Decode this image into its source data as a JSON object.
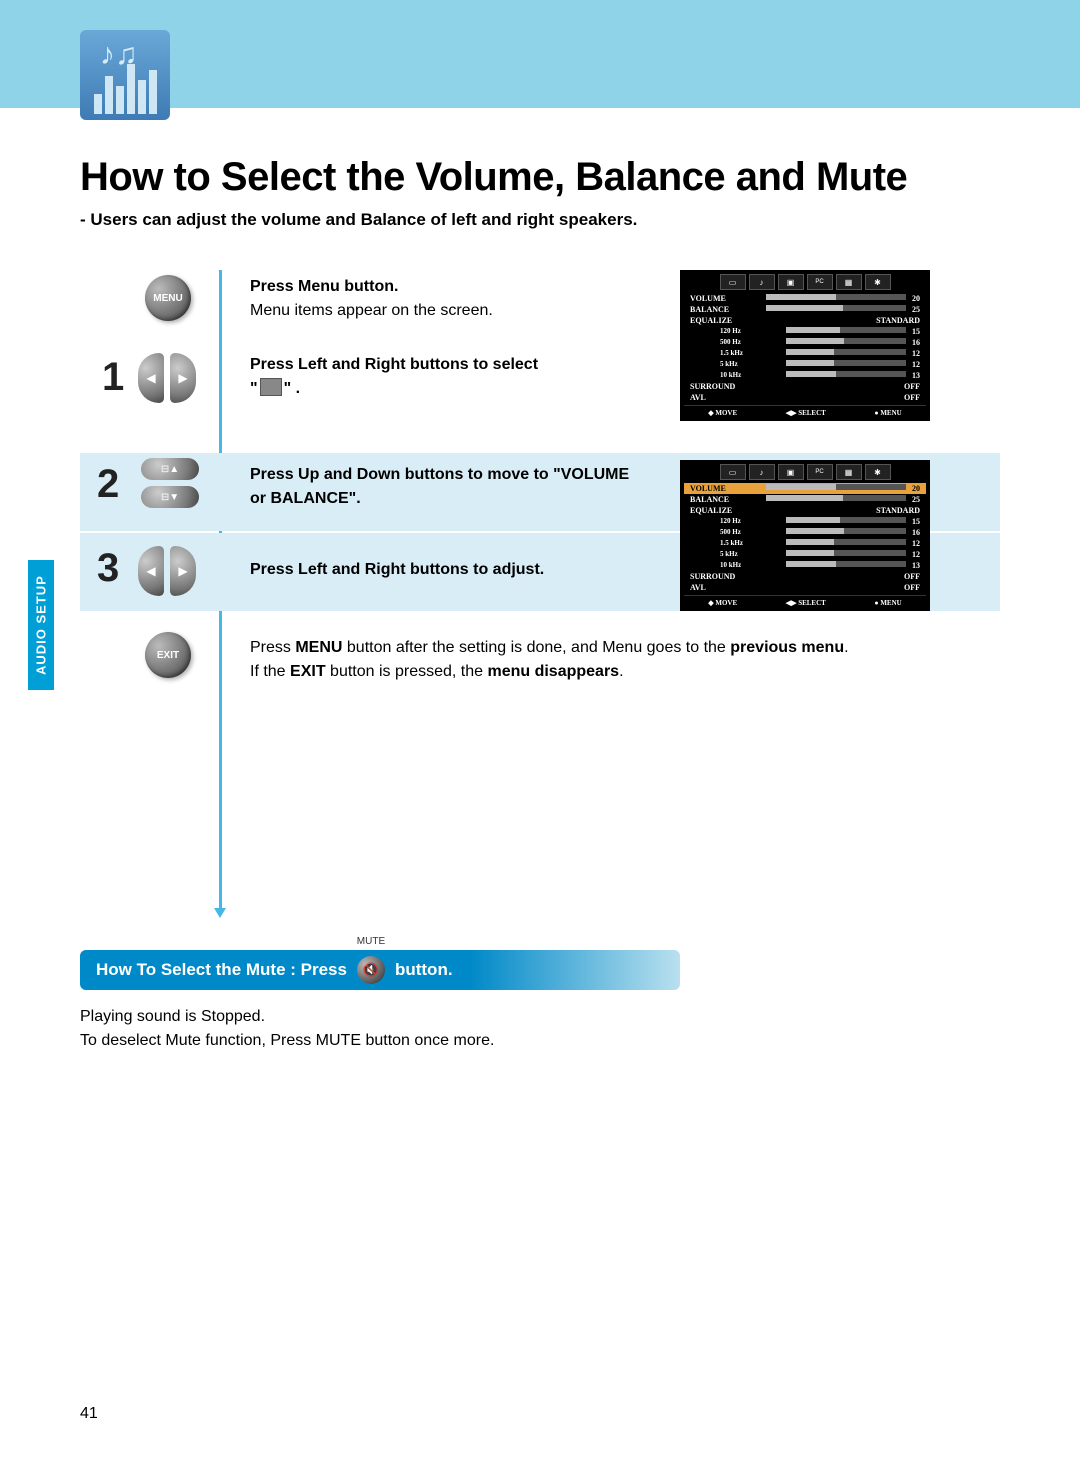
{
  "page_number": "41",
  "side_tab": "AUDIO SETUP",
  "title": "How to Select the Volume, Balance and Mute",
  "subtitle": "- Users can adjust the volume and Balance of left and right speakers.",
  "menu_btn": "MENU",
  "exit_btn": "EXIT",
  "step_menu_bold": "Press Menu button.",
  "step_menu_text": "Menu items appear on the screen.",
  "step1_num": "1",
  "step1_bold": "Press Left and Right buttons to select",
  "step1_rest_a": "\"",
  "step1_rest_b": "\" .",
  "step2_num": "2",
  "step2_bold": "Press Up and Down buttons to move to \"VOLUME or BALANCE\".",
  "step3_num": "3",
  "step3_bold": "Press Left and Right buttons to adjust.",
  "exit_line1a": "Press ",
  "exit_line1b": "MENU",
  "exit_line1c": " button after the setting is done, and Menu goes to the ",
  "exit_line1d": "previous menu",
  "exit_line1e": ".",
  "exit_line2a": "If the ",
  "exit_line2b": "EXIT",
  "exit_line2c": " button is pressed, the ",
  "exit_line2d": "menu disappears",
  "exit_line2e": ".",
  "mute_banner_a": "How To Select the Mute : Press",
  "mute_banner_b": "button.",
  "mute_label": "MUTE",
  "mute_text1": "Playing sound is Stopped.",
  "mute_text2": "To deselect Mute function, Press MUTE button once more.",
  "osd": {
    "rows": [
      {
        "label": "VOLUME",
        "val": "20",
        "bar": 50
      },
      {
        "label": "BALANCE",
        "val": "25",
        "bar": 55
      },
      {
        "label": "EQUALIZE",
        "val": "STANDARD"
      },
      {
        "label": "120  Hz",
        "val": "15",
        "bar": 45,
        "indent": true
      },
      {
        "label": "500  Hz",
        "val": "16",
        "bar": 48,
        "indent": true
      },
      {
        "label": "1.5  kHz",
        "val": "12",
        "bar": 40,
        "indent": true
      },
      {
        "label": "5  kHz",
        "val": "12",
        "bar": 40,
        "indent": true
      },
      {
        "label": "10  kHz",
        "val": "13",
        "bar": 42,
        "indent": true
      },
      {
        "label": "SURROUND",
        "val": "OFF"
      },
      {
        "label": "AVL",
        "val": "OFF"
      }
    ],
    "foot": [
      "◆  MOVE",
      "◀▶  SELECT",
      "●  MENU"
    ]
  },
  "colors": {
    "topband": "#8fd3e8",
    "stepband": "#d9edf6",
    "accent": "#46b8e6",
    "banner": "#0089c8",
    "sidetab": "#009fd6",
    "highlight": "#e9a23b"
  }
}
